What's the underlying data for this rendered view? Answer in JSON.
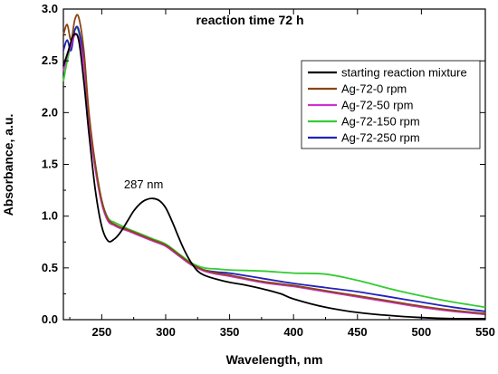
{
  "chart_data": {
    "type": "line",
    "title": "reaction time 72 h",
    "xlabel": "Wavelength, nm",
    "ylabel": "Absorbance, a.u.",
    "xlim": [
      220,
      550
    ],
    "ylim": [
      0.0,
      3.0
    ],
    "x_ticks": [
      250,
      300,
      350,
      400,
      450,
      500,
      550
    ],
    "y_ticks": [
      0.0,
      0.5,
      1.0,
      1.5,
      2.0,
      2.5,
      3.0
    ],
    "x_tick_labels": [
      "250",
      "300",
      "350",
      "400",
      "450",
      "500",
      "550"
    ],
    "y_tick_labels": [
      "0.0",
      "0.5",
      "1.0",
      "1.5",
      "2.0",
      "2.5",
      "3.0"
    ],
    "grid": false,
    "legend_position": "top-right",
    "annotations": [
      {
        "text": "287 nm",
        "x": 287,
        "y": 1.2
      }
    ],
    "series": [
      {
        "name": "starting reaction mixture",
        "color": "#000000",
        "x": [
          220,
          224,
          228,
          232,
          236,
          240,
          245,
          250,
          255,
          260,
          265,
          270,
          275,
          280,
          285,
          290,
          295,
          300,
          305,
          310,
          315,
          320,
          325,
          330,
          340,
          350,
          360,
          375,
          390,
          400,
          425,
          450,
          475,
          500,
          525,
          550
        ],
        "y": [
          2.45,
          2.6,
          2.75,
          2.7,
          2.3,
          1.8,
          1.25,
          0.9,
          0.76,
          0.78,
          0.85,
          0.95,
          1.05,
          1.12,
          1.16,
          1.17,
          1.15,
          1.08,
          0.95,
          0.8,
          0.66,
          0.55,
          0.47,
          0.43,
          0.39,
          0.36,
          0.34,
          0.3,
          0.25,
          0.2,
          0.12,
          0.07,
          0.04,
          0.02,
          0.01,
          0.01
        ]
      },
      {
        "name": "Ag-72-0 rpm",
        "color": "#8b4513",
        "x": [
          220,
          223,
          226,
          229,
          232,
          236,
          240,
          245,
          250,
          255,
          260,
          265,
          270,
          280,
          290,
          300,
          310,
          320,
          330,
          340,
          350,
          375,
          400,
          425,
          450,
          475,
          500,
          525,
          550
        ],
        "y": [
          2.75,
          2.85,
          2.7,
          2.9,
          2.92,
          2.6,
          2.0,
          1.5,
          1.15,
          0.97,
          0.92,
          0.89,
          0.87,
          0.82,
          0.77,
          0.72,
          0.63,
          0.54,
          0.48,
          0.45,
          0.43,
          0.37,
          0.33,
          0.28,
          0.23,
          0.18,
          0.13,
          0.09,
          0.06
        ]
      },
      {
        "name": "Ag-72-50 rpm",
        "color": "#cc33cc",
        "x": [
          220,
          223,
          226,
          229,
          232,
          236,
          240,
          245,
          250,
          255,
          260,
          265,
          270,
          280,
          290,
          300,
          310,
          320,
          330,
          340,
          350,
          375,
          400,
          425,
          450,
          475,
          500,
          525,
          550
        ],
        "y": [
          2.4,
          2.55,
          2.65,
          2.75,
          2.72,
          2.45,
          1.9,
          1.45,
          1.12,
          0.95,
          0.91,
          0.88,
          0.86,
          0.81,
          0.76,
          0.71,
          0.62,
          0.53,
          0.47,
          0.44,
          0.42,
          0.36,
          0.32,
          0.27,
          0.22,
          0.17,
          0.12,
          0.08,
          0.05
        ]
      },
      {
        "name": "Ag-72-150 rpm",
        "color": "#33cc33",
        "x": [
          220,
          223,
          226,
          229,
          232,
          236,
          240,
          245,
          250,
          255,
          260,
          265,
          270,
          280,
          290,
          300,
          310,
          320,
          330,
          340,
          350,
          375,
          400,
          425,
          450,
          475,
          500,
          525,
          550
        ],
        "y": [
          2.3,
          2.5,
          2.65,
          2.8,
          2.78,
          2.5,
          1.95,
          1.5,
          1.15,
          0.98,
          0.94,
          0.91,
          0.88,
          0.83,
          0.78,
          0.73,
          0.64,
          0.55,
          0.5,
          0.49,
          0.48,
          0.47,
          0.45,
          0.44,
          0.38,
          0.3,
          0.23,
          0.17,
          0.12
        ]
      },
      {
        "name": "Ag-72-250 rpm",
        "color": "#2222bb",
        "x": [
          220,
          223,
          226,
          229,
          232,
          236,
          240,
          245,
          250,
          255,
          260,
          265,
          270,
          280,
          290,
          300,
          310,
          320,
          330,
          340,
          350,
          375,
          400,
          425,
          450,
          475,
          500,
          525,
          550
        ],
        "y": [
          2.6,
          2.7,
          2.6,
          2.8,
          2.8,
          2.5,
          1.95,
          1.48,
          1.13,
          0.96,
          0.91,
          0.88,
          0.86,
          0.81,
          0.76,
          0.71,
          0.62,
          0.53,
          0.48,
          0.46,
          0.45,
          0.4,
          0.35,
          0.31,
          0.27,
          0.22,
          0.17,
          0.12,
          0.08
        ]
      }
    ]
  }
}
